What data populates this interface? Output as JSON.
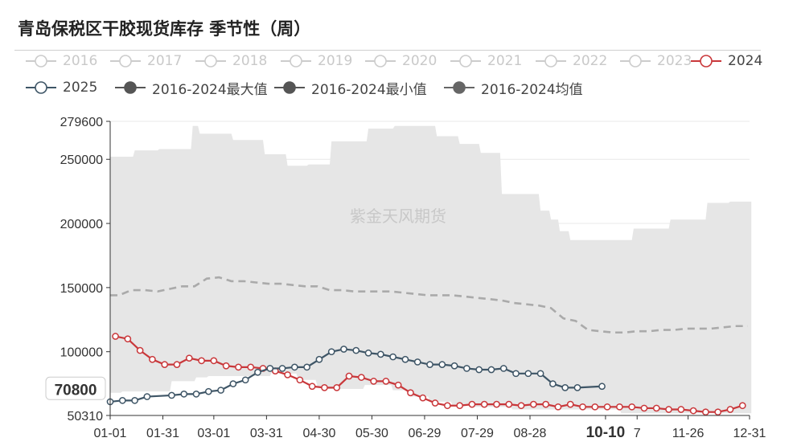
{
  "title": "青岛保税区干胶现货库存 季节性（周）",
  "watermark": "紫金天风期货",
  "legend": [
    {
      "label": "2016",
      "state": "off",
      "style": "open-circle",
      "color": "#cccccc"
    },
    {
      "label": "2017",
      "state": "off",
      "style": "open-circle",
      "color": "#cccccc"
    },
    {
      "label": "2018",
      "state": "off",
      "style": "open-circle",
      "color": "#cccccc"
    },
    {
      "label": "2019",
      "state": "off",
      "style": "open-circle",
      "color": "#cccccc"
    },
    {
      "label": "2020",
      "state": "off",
      "style": "open-circle",
      "color": "#cccccc"
    },
    {
      "label": "2021",
      "state": "off",
      "style": "open-circle",
      "color": "#cccccc"
    },
    {
      "label": "2022",
      "state": "off",
      "style": "open-circle",
      "color": "#cccccc"
    },
    {
      "label": "2023",
      "state": "off",
      "style": "open-circle",
      "color": "#cccccc"
    },
    {
      "label": "2024",
      "state": "on",
      "style": "open-circle",
      "color": "#c9373a"
    },
    {
      "label": "2025",
      "state": "on",
      "style": "open-circle",
      "color": "#3e5566"
    },
    {
      "label": "2016-2024最大值",
      "state": "on",
      "style": "filled-circle",
      "color": "#555555"
    },
    {
      "label": "2016-2024最小值",
      "state": "on",
      "style": "filled-circle",
      "color": "#555555"
    },
    {
      "label": "2016-2024均值",
      "state": "on",
      "style": "filled-circle",
      "color": "#666666"
    }
  ],
  "chart_data": {
    "type": "line",
    "ylim": [
      50310,
      279600
    ],
    "y_ticks": [
      50310,
      100000,
      150000,
      200000,
      250000,
      279600
    ],
    "x_ticks": [
      "01-01",
      "01-31",
      "03-01",
      "03-31",
      "04-30",
      "05-30",
      "06-29",
      "07-29",
      "08-28",
      "10-10",
      "7",
      "11-26",
      "12-31"
    ],
    "x_tick_days": [
      0,
      30,
      59,
      89,
      119,
      149,
      179,
      209,
      239,
      282,
      300,
      329,
      364
    ],
    "highlight_x": "10-10",
    "highlight_y": 70800,
    "highlight_y_label": "70800",
    "series": [
      {
        "name": "2016-2024最大值",
        "role": "band_max",
        "color": "#e6e6e6",
        "x": [
          0,
          13,
          14,
          27,
          28,
          46,
          47,
          50,
          51,
          69,
          70,
          87,
          88,
          100,
          101,
          112,
          113,
          125,
          126,
          146,
          147,
          161,
          162,
          185,
          186,
          198,
          199,
          210,
          211,
          222,
          223,
          244,
          245,
          250,
          251,
          255,
          256,
          261,
          262,
          297,
          298,
          318,
          319,
          339,
          340,
          352,
          353,
          365
        ],
        "values": [
          252000,
          252000,
          257000,
          257000,
          258000,
          258000,
          276000,
          276000,
          270000,
          270000,
          265000,
          265000,
          254000,
          254000,
          245000,
          245000,
          246000,
          246000,
          264000,
          264000,
          274000,
          274000,
          276000,
          276000,
          268000,
          268000,
          262000,
          262000,
          255000,
          255000,
          223000,
          223000,
          210000,
          210000,
          203000,
          203000,
          194000,
          194000,
          187000,
          187000,
          196000,
          196000,
          203000,
          203000,
          216000,
          216000,
          217000,
          217000
        ]
      },
      {
        "name": "2016-2024最小值",
        "role": "band_min",
        "color": "#ffffff",
        "x": [
          0,
          6,
          7,
          34,
          35,
          48,
          49,
          55,
          56,
          91,
          92,
          100,
          101,
          106,
          107,
          117,
          118,
          123,
          124,
          126,
          127,
          144,
          145,
          160,
          161,
          170,
          171,
          181,
          182,
          194,
          195,
          205,
          206,
          228,
          229,
          290,
          291,
          365
        ],
        "values": [
          68000,
          68000,
          69000,
          69000,
          77000,
          77000,
          80000,
          80000,
          81000,
          81000,
          84000,
          84000,
          83000,
          83000,
          78000,
          78000,
          73000,
          73000,
          71000,
          71000,
          71000,
          71000,
          74000,
          74000,
          70000,
          70000,
          65000,
          65000,
          61000,
          61000,
          58000,
          58000,
          57000,
          57000,
          55000,
          55000,
          52000,
          52000
        ]
      },
      {
        "name": "2016-2024均值",
        "role": "mean",
        "color": "#aaaaaa",
        "x": [
          0,
          5,
          12,
          20,
          27,
          34,
          41,
          48,
          55,
          62,
          69,
          76,
          83,
          90,
          97,
          104,
          111,
          118,
          125,
          132,
          139,
          146,
          153,
          160,
          167,
          174,
          181,
          188,
          195,
          202,
          209,
          216,
          223,
          230,
          237,
          244,
          251,
          258,
          265,
          272,
          279,
          286,
          293,
          300,
          307,
          314,
          321,
          328,
          335,
          342,
          349,
          356,
          363
        ],
        "values": [
          144000,
          144000,
          148000,
          148000,
          147000,
          149000,
          151000,
          151000,
          157000,
          158000,
          155000,
          155000,
          154000,
          153000,
          153000,
          152000,
          151000,
          151000,
          148000,
          148000,
          147000,
          147000,
          147000,
          147000,
          146000,
          145000,
          144000,
          144000,
          144000,
          143000,
          142000,
          141000,
          140000,
          138000,
          137000,
          136000,
          134000,
          126000,
          124000,
          117000,
          116000,
          115000,
          115000,
          116000,
          116000,
          117000,
          117000,
          118000,
          118000,
          118000,
          119000,
          120000,
          120000
        ]
      },
      {
        "name": "2024",
        "role": "line",
        "color": "#c9373a",
        "x": [
          3,
          10,
          17,
          24,
          31,
          38,
          45,
          52,
          59,
          66,
          73,
          80,
          87,
          94,
          101,
          108,
          115,
          122,
          129,
          136,
          143,
          150,
          157,
          164,
          171,
          178,
          185,
          192,
          199,
          206,
          213,
          220,
          227,
          234,
          241,
          248,
          255,
          262,
          269,
          276,
          283,
          290,
          297,
          304,
          311,
          318,
          325,
          332,
          339,
          346,
          353,
          360
        ],
        "values": [
          112000,
          110000,
          101000,
          94000,
          90000,
          90000,
          95000,
          93000,
          93000,
          89000,
          88000,
          88000,
          87000,
          85000,
          82000,
          78000,
          73000,
          72000,
          72000,
          81000,
          80000,
          77000,
          77000,
          74000,
          68000,
          64000,
          60000,
          58000,
          58000,
          59000,
          59000,
          59000,
          59000,
          58000,
          59000,
          59000,
          57000,
          59000,
          57000,
          57000,
          57000,
          57000,
          57000,
          56000,
          56000,
          55000,
          55000,
          54000,
          53000,
          53000,
          55000,
          58000
        ]
      },
      {
        "name": "2025",
        "role": "line",
        "color": "#3e5566",
        "x": [
          0,
          7,
          14,
          21,
          35,
          42,
          49,
          56,
          63,
          70,
          77,
          84,
          91,
          98,
          105,
          112,
          119,
          126,
          133,
          140,
          147,
          154,
          161,
          168,
          175,
          182,
          189,
          196,
          203,
          210,
          217,
          224,
          231,
          238,
          245,
          252,
          259,
          266,
          280
        ],
        "values": [
          61000,
          62000,
          62000,
          65000,
          66000,
          67000,
          67000,
          69000,
          70000,
          75000,
          78000,
          84000,
          87000,
          87000,
          88000,
          88000,
          94000,
          100000,
          102000,
          101000,
          99000,
          98000,
          96000,
          94000,
          92000,
          90000,
          90000,
          89000,
          87000,
          86000,
          86000,
          87000,
          83000,
          83000,
          83000,
          75000,
          72000,
          72000,
          73000
        ]
      }
    ]
  }
}
